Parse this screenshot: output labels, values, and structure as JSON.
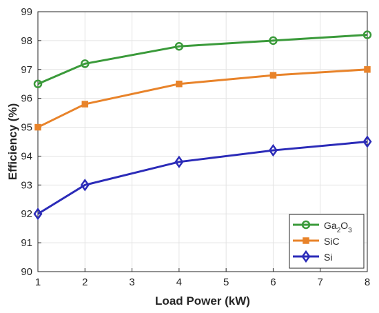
{
  "chart_data": {
    "type": "line",
    "xlabel": "Load Power (kW)",
    "ylabel": "Efficiency (%)",
    "xlim": [
      1,
      8
    ],
    "ylim": [
      90,
      99
    ],
    "xticks": [
      "1",
      "2",
      "3",
      "4",
      "5",
      "6",
      "7",
      "8"
    ],
    "yticks": [
      "90",
      "91",
      "92",
      "93",
      "94",
      "95",
      "96",
      "97",
      "98",
      "99"
    ],
    "grid": true,
    "legend_position": "bottom-right",
    "x": [
      1,
      2,
      4,
      6,
      8
    ],
    "series": [
      {
        "name": "Ga2O3",
        "name_base": "Ga",
        "name_sub1": "2",
        "name_mid": "O",
        "name_sub2": "3",
        "color": "#3a9a3a",
        "marker": "circle",
        "values": [
          96.5,
          97.2,
          97.8,
          98.0,
          98.2
        ]
      },
      {
        "name": "SiC",
        "color": "#e8832a",
        "marker": "square",
        "values": [
          95.0,
          95.8,
          96.5,
          96.8,
          97.0
        ]
      },
      {
        "name": "Si",
        "color": "#2b2bb8",
        "marker": "diamond",
        "values": [
          92.0,
          93.0,
          93.8,
          94.2,
          94.5
        ]
      }
    ]
  }
}
